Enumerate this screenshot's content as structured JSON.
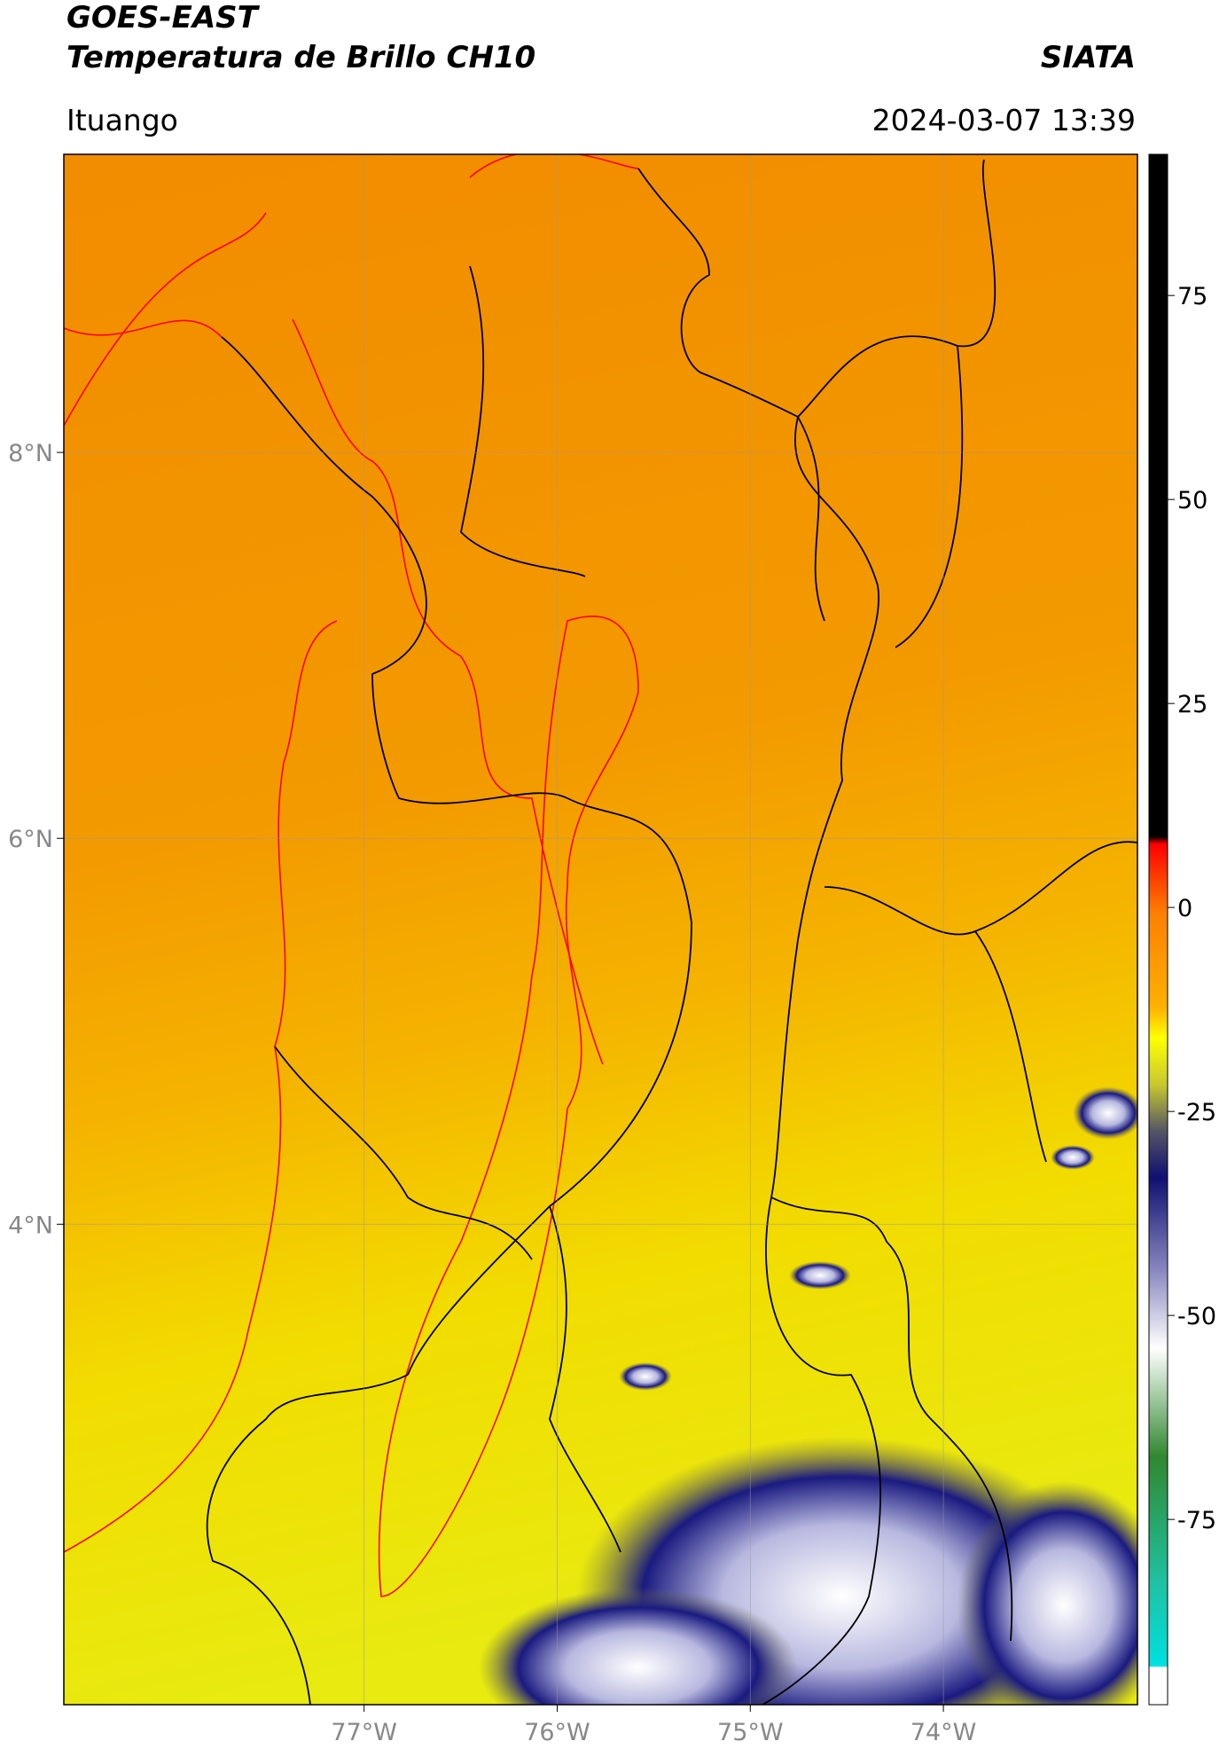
{
  "header": {
    "title_line1": "GOES-EAST",
    "title_line2": "Temperatura de Brillo CH10",
    "source": "SIATA",
    "location": "Ituango",
    "datetime": "2024-03-07 13:39"
  },
  "map": {
    "xlim": [
      -78.555,
      -72.995
    ],
    "ylim": [
      1.51,
      9.545
    ],
    "xticks": [
      {
        "value": -77,
        "label": "77°W"
      },
      {
        "value": -76,
        "label": "76°W"
      },
      {
        "value": -75,
        "label": "75°W"
      },
      {
        "value": -74,
        "label": "74°W"
      }
    ],
    "yticks": [
      {
        "value": 8,
        "label": "8°N"
      },
      {
        "value": 6,
        "label": "6°N"
      },
      {
        "value": 4,
        "label": "4°N"
      }
    ]
  },
  "colorbar": {
    "lim": [
      -97.7,
      92.3
    ],
    "ticks": [
      75,
      50,
      25,
      0,
      -25,
      -50,
      -75
    ]
  }
}
